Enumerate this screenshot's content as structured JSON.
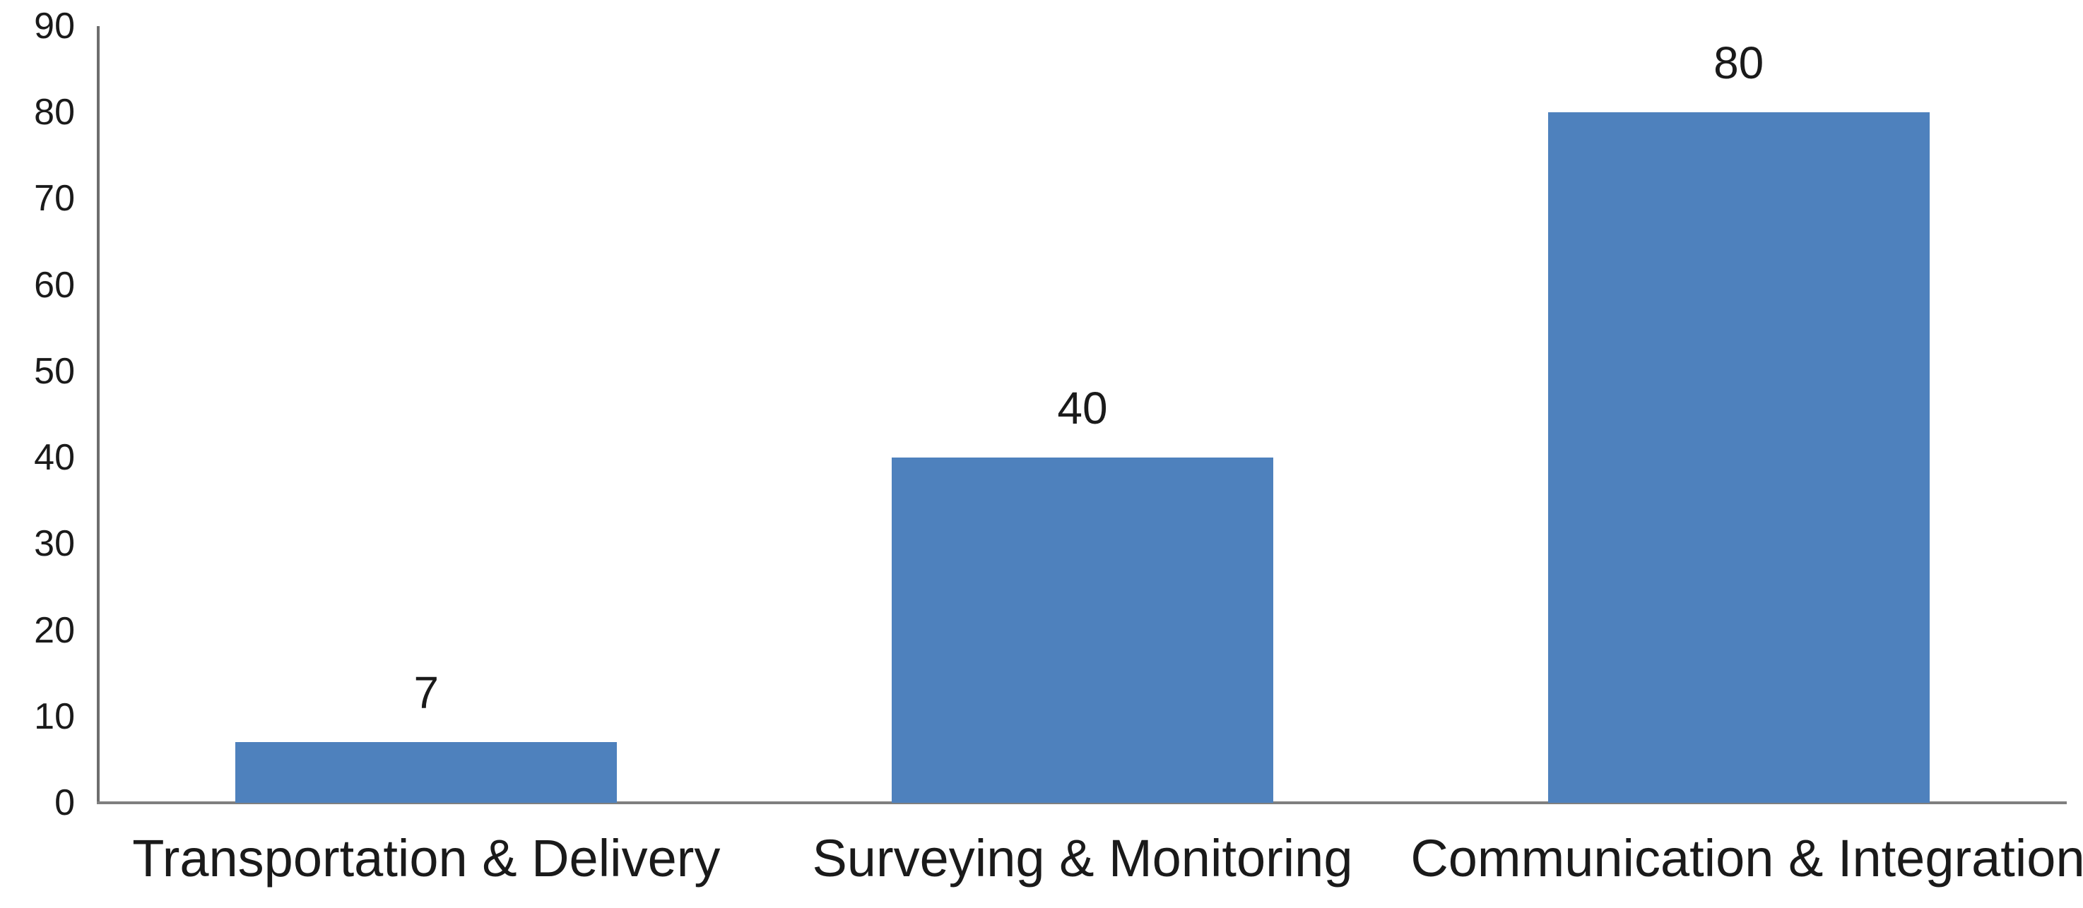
{
  "chart_data": {
    "type": "bar",
    "categories": [
      "Transportation & Delivery",
      "Surveying & Monitoring",
      "Communication & Integration"
    ],
    "values": [
      7,
      40,
      80
    ],
    "data_labels": [
      "7",
      "40",
      "80"
    ],
    "title": "",
    "xlabel": "",
    "ylabel": "",
    "ylim": [
      0,
      90
    ],
    "y_ticks": [
      0,
      10,
      20,
      30,
      40,
      50,
      60,
      70,
      80,
      90
    ],
    "grid": "off",
    "legend": "none",
    "bar_color": "#4E81BD",
    "y_axis_line_color": "#6E6E6E",
    "x_axis_line_color": "#7F7F7F",
    "text_color": "#1A1A1A"
  }
}
